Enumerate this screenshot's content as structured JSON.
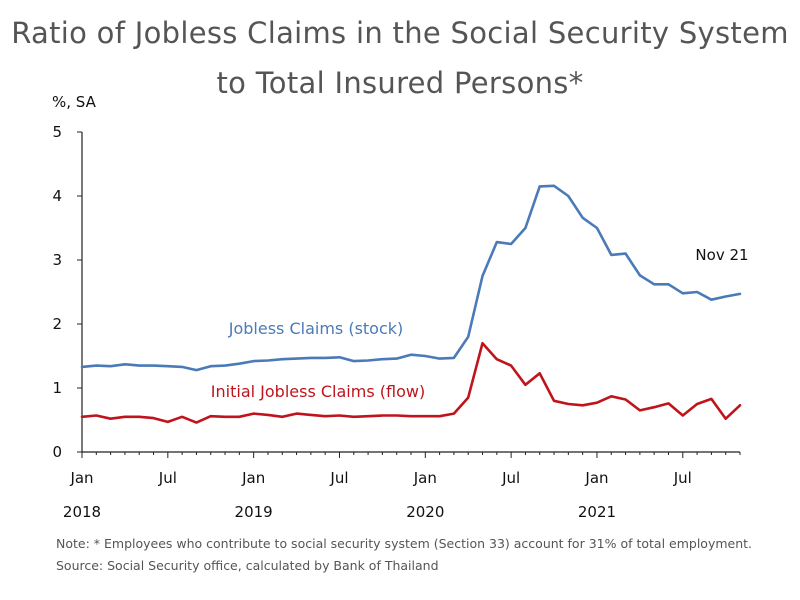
{
  "title_line1": "Ratio of Jobless Claims in the Social Security System",
  "title_line2": "to Total Insured Persons*",
  "note": "Note: * Employees who contribute to social security system (Section 33) account for 31% of total employment.",
  "source": "Source: Social Security office, calculated by Bank of Thailand",
  "chart_data": {
    "type": "line",
    "title": "Ratio of Jobless Claims in the Social Security System to Total Insured Persons*",
    "ylabel": "%, SA",
    "ylim": [
      0,
      5
    ],
    "yticks": [
      0,
      1,
      2,
      3,
      4,
      5
    ],
    "x_month_labels": [
      "Jan",
      "Jul",
      "Jan",
      "Jul",
      "Jan",
      "Jul",
      "Jan",
      "Jul"
    ],
    "x_year_labels": [
      "2018",
      "2019",
      "2020",
      "2021"
    ],
    "x_start": "2018-01",
    "x_end": "2021-11",
    "annotation": "Nov 21",
    "series": [
      {
        "name": "Jobless Claims (stock)",
        "color": "#4a7ab8",
        "values": [
          1.33,
          1.35,
          1.34,
          1.37,
          1.35,
          1.35,
          1.34,
          1.33,
          1.28,
          1.34,
          1.35,
          1.38,
          1.42,
          1.43,
          1.45,
          1.46,
          1.47,
          1.47,
          1.48,
          1.42,
          1.43,
          1.45,
          1.46,
          1.52,
          1.5,
          1.46,
          1.47,
          1.8,
          2.75,
          3.28,
          3.25,
          3.5,
          4.15,
          4.16,
          4.0,
          3.66,
          3.5,
          3.08,
          3.1,
          2.76,
          2.62,
          2.62,
          2.48,
          2.5,
          2.38,
          2.43,
          2.47
        ]
      },
      {
        "name": "Initial Jobless Claims (flow)",
        "color": "#c0141c",
        "values": [
          0.55,
          0.57,
          0.52,
          0.55,
          0.55,
          0.53,
          0.47,
          0.55,
          0.46,
          0.56,
          0.55,
          0.55,
          0.6,
          0.58,
          0.55,
          0.6,
          0.58,
          0.56,
          0.57,
          0.55,
          0.56,
          0.57,
          0.57,
          0.56,
          0.56,
          0.56,
          0.6,
          0.85,
          1.7,
          1.45,
          1.35,
          1.05,
          1.23,
          0.8,
          0.75,
          0.73,
          0.77,
          0.87,
          0.82,
          0.65,
          0.7,
          0.76,
          0.57,
          0.75,
          0.83,
          0.52,
          0.73
        ]
      }
    ]
  }
}
